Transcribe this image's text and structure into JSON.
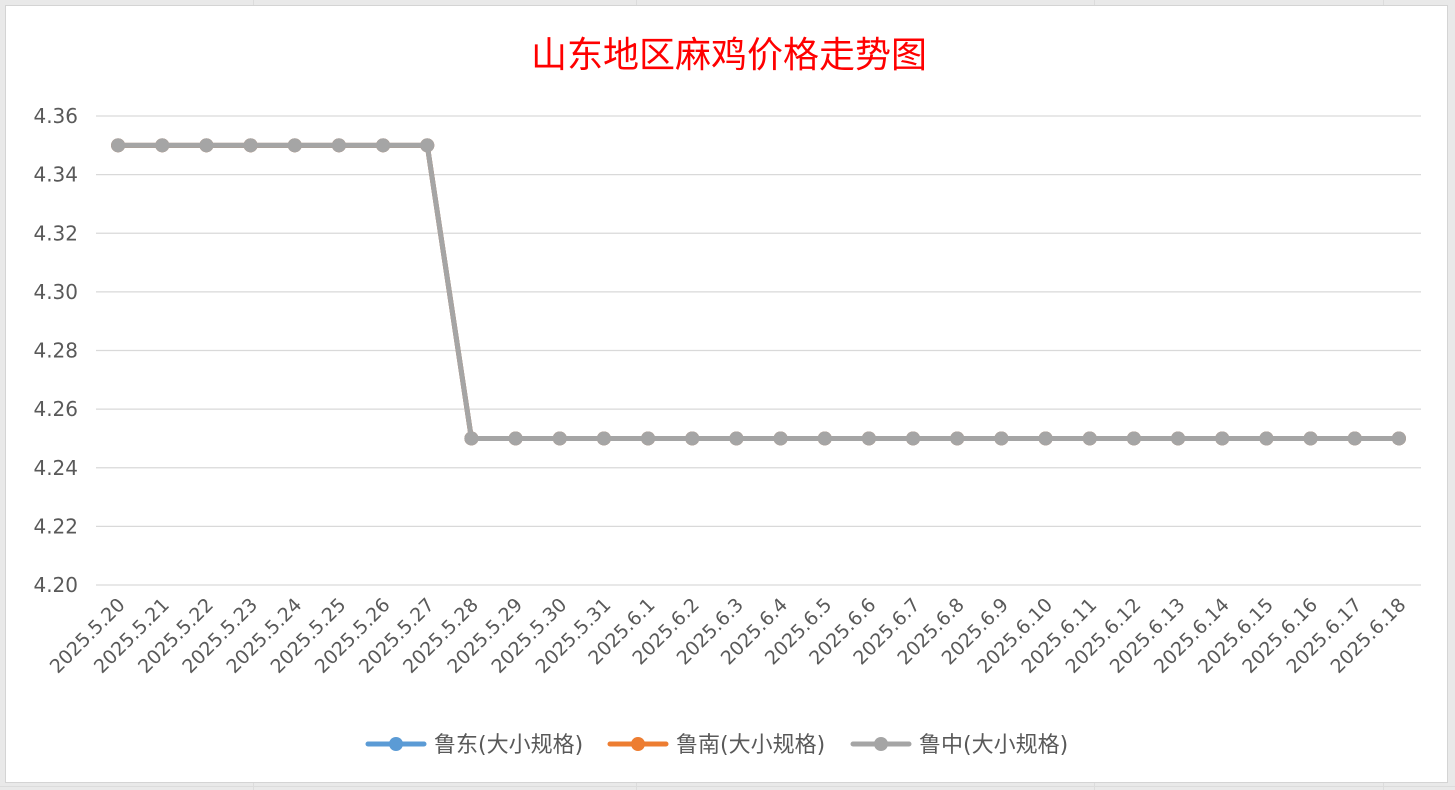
{
  "chart_data": {
    "type": "line",
    "title": "山东地区麻鸡价格走势图",
    "xlabel": "",
    "ylabel": "",
    "ylim": [
      4.2,
      4.36
    ],
    "yticks": [
      "4.20",
      "4.22",
      "4.24",
      "4.26",
      "4.28",
      "4.30",
      "4.32",
      "4.34",
      "4.36"
    ],
    "grid": "horizontal",
    "legend_position": "bottom",
    "categories": [
      "2025.5.20",
      "2025.5.21",
      "2025.5.22",
      "2025.5.23",
      "2025.5.24",
      "2025.5.25",
      "2025.5.26",
      "2025.5.27",
      "2025.5.28",
      "2025.5.29",
      "2025.5.30",
      "2025.5.31",
      "2025.6.1",
      "2025.6.2",
      "2025.6.3",
      "2025.6.4",
      "2025.6.5",
      "2025.6.6",
      "2025.6.7",
      "2025.6.8",
      "2025.6.9",
      "2025.6.10",
      "2025.6.11",
      "2025.6.12",
      "2025.6.13",
      "2025.6.14",
      "2025.6.15",
      "2025.6.16",
      "2025.6.17",
      "2025.6.18"
    ],
    "series": [
      {
        "name": "鲁东(大小规格)",
        "color": "#5b9bd5",
        "values": [
          4.35,
          4.35,
          4.35,
          4.35,
          4.35,
          4.35,
          4.35,
          4.35,
          4.25,
          4.25,
          4.25,
          4.25,
          4.25,
          4.25,
          4.25,
          4.25,
          4.25,
          4.25,
          4.25,
          4.25,
          4.25,
          4.25,
          4.25,
          4.25,
          4.25,
          4.25,
          4.25,
          4.25,
          4.25,
          4.25
        ]
      },
      {
        "name": "鲁南(大小规格)",
        "color": "#ed7d31",
        "values": [
          4.35,
          4.35,
          4.35,
          4.35,
          4.35,
          4.35,
          4.35,
          4.35,
          4.25,
          4.25,
          4.25,
          4.25,
          4.25,
          4.25,
          4.25,
          4.25,
          4.25,
          4.25,
          4.25,
          4.25,
          4.25,
          4.25,
          4.25,
          4.25,
          4.25,
          4.25,
          4.25,
          4.25,
          4.25,
          4.25
        ]
      },
      {
        "name": "鲁中(大小规格)",
        "color": "#a5a5a5",
        "values": [
          4.35,
          4.35,
          4.35,
          4.35,
          4.35,
          4.35,
          4.35,
          4.35,
          4.25,
          4.25,
          4.25,
          4.25,
          4.25,
          4.25,
          4.25,
          4.25,
          4.25,
          4.25,
          4.25,
          4.25,
          4.25,
          4.25,
          4.25,
          4.25,
          4.25,
          4.25,
          4.25,
          4.25,
          4.25,
          4.25
        ]
      }
    ]
  }
}
